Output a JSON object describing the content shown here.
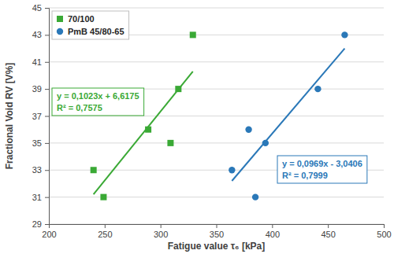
{
  "chart_data": {
    "type": "scatter",
    "x_label": "Fatigue value τ₆ [kPa]",
    "y_label": "Fractional Void RV [V%]",
    "xlim": [
      200,
      500
    ],
    "xticks": [
      200,
      250,
      300,
      350,
      400,
      450,
      500
    ],
    "ylim": [
      29,
      45
    ],
    "yticks": [
      29,
      31,
      33,
      35,
      37,
      39,
      41,
      43,
      45
    ],
    "grid": true,
    "legend": "top-left",
    "series": [
      {
        "name": "70/100",
        "color": "#3aa935",
        "marker": "square",
        "x": [
          240,
          249,
          289,
          309,
          316,
          329
        ],
        "values": [
          33,
          31,
          36,
          35,
          39,
          43
        ],
        "trendline": {
          "x": [
            240,
            329
          ],
          "values": [
            31.2,
            40.3
          ]
        },
        "equation": "y = 0,1023x + 6,6175",
        "r_squared": "R² = 0,7575"
      },
      {
        "name": "PmB 45/80-65",
        "color": "#2a78b8",
        "marker": "circle",
        "x": [
          364,
          379,
          385,
          394,
          441,
          465
        ],
        "values": [
          33,
          36,
          31,
          35,
          39,
          43
        ],
        "trendline": {
          "x": [
            364,
            465
          ],
          "values": [
            32.2,
            42.0
          ]
        },
        "equation": "y = 0,0969x - 3,0406",
        "r_squared": "R² = 0,7999"
      }
    ]
  }
}
